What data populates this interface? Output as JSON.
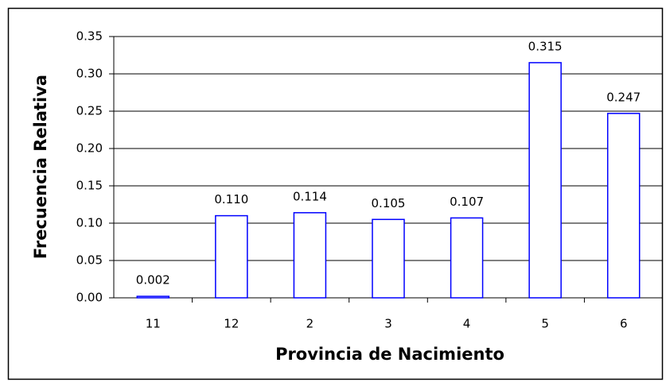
{
  "chart_data": {
    "type": "bar",
    "x_label": "Provincia de Nacimiento",
    "y_label": "Frecuencia Relativa",
    "categories": [
      "11",
      "12",
      "2",
      "3",
      "4",
      "5",
      "6"
    ],
    "values": [
      0.002,
      0.11,
      0.114,
      0.105,
      0.107,
      0.315,
      0.247
    ],
    "value_labels": [
      "0.002",
      "0.110",
      "0.114",
      "0.105",
      "0.107",
      "0.315",
      "0.247"
    ],
    "color": "#0000ff",
    "ylim": [
      0,
      0.35
    ],
    "yticks": [
      {
        "value": 0,
        "label": "0.00"
      },
      {
        "value": 0.05,
        "label": "0.05"
      },
      {
        "value": 0.1,
        "label": "0.10"
      },
      {
        "value": 0.15,
        "label": "0.15"
      },
      {
        "value": 0.2,
        "label": "0.20"
      },
      {
        "value": 0.25,
        "label": "0.25"
      },
      {
        "value": 0.3,
        "label": "0.30"
      },
      {
        "value": 0.35,
        "label": "0.35"
      }
    ],
    "grid": true
  }
}
